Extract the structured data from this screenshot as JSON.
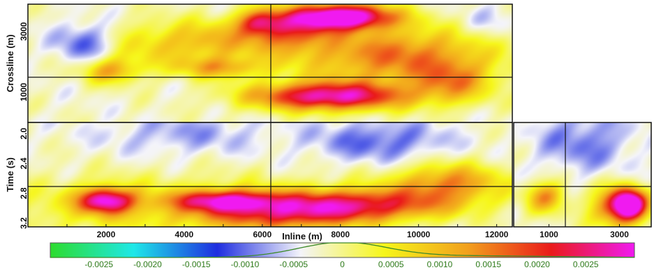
{
  "chart_data": {
    "type": "heatmap",
    "colormap": [
      "#2ddc2d",
      "#1ee8e8",
      "#1e2de0",
      "#f4f4fa",
      "#f6f61a",
      "#f2a01c",
      "#ea1a1a",
      "#f01af0"
    ],
    "color_range": [
      -0.003,
      0.003
    ],
    "panels": [
      {
        "name": "time-slice",
        "xlabel": "",
        "ylabel": "Crossline (m)",
        "xlim": [
          0,
          12400
        ],
        "ylim": [
          0,
          3900
        ],
        "y_ticks": [
          "1000",
          "3000"
        ],
        "y_tick_values": [
          1000,
          3000
        ],
        "crosshair": {
          "x": 6150,
          "y": 1470
        },
        "hotspots": [
          {
            "x": 8100,
            "y": 3500,
            "sx": 900,
            "sy": 300,
            "amp": 0.0036
          },
          {
            "x": 7700,
            "y": 850,
            "sx": 1400,
            "sy": 330,
            "amp": 0.003
          },
          {
            "x": 9400,
            "y": 2200,
            "sx": 1800,
            "sy": 700,
            "amp": 0.0018
          },
          {
            "x": 6800,
            "y": 3100,
            "sx": 700,
            "sy": 500,
            "amp": 0.0016
          },
          {
            "x": 5900,
            "y": 3300,
            "sx": 400,
            "sy": 300,
            "amp": 0.0017
          },
          {
            "x": 4800,
            "y": 2700,
            "sx": 1100,
            "sy": 500,
            "amp": 0.0011
          },
          {
            "x": 2100,
            "y": 1700,
            "sx": 500,
            "sy": 300,
            "amp": 0.0013
          },
          {
            "x": 4900,
            "y": 1800,
            "sx": 800,
            "sy": 250,
            "amp": 0.0012
          },
          {
            "x": 2600,
            "y": 2500,
            "sx": 1200,
            "sy": 600,
            "amp": 0.0007
          },
          {
            "x": 10900,
            "y": 1300,
            "sx": 700,
            "sy": 500,
            "amp": 0.0012
          },
          {
            "x": 1500,
            "y": 2600,
            "sx": 600,
            "sy": 500,
            "amp": -0.0012
          },
          {
            "x": 11800,
            "y": 3300,
            "sx": 600,
            "sy": 400,
            "amp": -0.0004
          }
        ]
      },
      {
        "name": "inline-section",
        "xlabel": "Inline (m)",
        "ylabel": "Time (s)",
        "xlim": [
          0,
          12400
        ],
        "ylim": [
          1.85,
          3.25
        ],
        "x_ticks": [
          "2000",
          "4000",
          "6000",
          "8000",
          "10000",
          "12000"
        ],
        "x_tick_values": [
          2000,
          4000,
          6000,
          8000,
          10000,
          12000
        ],
        "y_ticks": [
          "2.0",
          "2.4",
          "2.8",
          "3.2"
        ],
        "y_tick_values": [
          2.0,
          2.4,
          2.8,
          3.2
        ],
        "crosshair": {
          "x": 6150,
          "y": 2.69
        },
        "hotspots": [
          {
            "x": 2000,
            "y": 2.9,
            "sx": 500,
            "sy": 0.12,
            "amp": 0.0028
          },
          {
            "x": 5000,
            "y": 2.9,
            "sx": 900,
            "sy": 0.1,
            "amp": 0.0022
          },
          {
            "x": 8400,
            "y": 2.95,
            "sx": 1800,
            "sy": 0.15,
            "amp": 0.0022
          },
          {
            "x": 10800,
            "y": 2.65,
            "sx": 1000,
            "sy": 0.18,
            "amp": 0.0016
          },
          {
            "x": 6500,
            "y": 3.1,
            "sx": 1500,
            "sy": 0.15,
            "amp": 0.0014
          },
          {
            "x": 3500,
            "y": 3.0,
            "sx": 3500,
            "sy": 0.3,
            "amp": 0.0008
          },
          {
            "x": 9000,
            "y": 2.1,
            "sx": 1200,
            "sy": 0.2,
            "amp": -0.0008
          },
          {
            "x": 4000,
            "y": 2.0,
            "sx": 1500,
            "sy": 0.2,
            "amp": -0.0005
          }
        ]
      },
      {
        "name": "crossline-section",
        "xlabel": "",
        "ylabel": "",
        "xlim": [
          0,
          3900
        ],
        "ylim": [
          1.85,
          3.25
        ],
        "x_ticks": [
          "1000",
          "3000"
        ],
        "x_tick_values": [
          1000,
          3000
        ],
        "crosshair": {
          "x": 1470,
          "y": 2.69
        },
        "hotspots": [
          {
            "x": 3300,
            "y": 2.95,
            "sx": 350,
            "sy": 0.15,
            "amp": 0.0036
          },
          {
            "x": 2800,
            "y": 3.0,
            "sx": 500,
            "sy": 0.2,
            "amp": 0.0016
          },
          {
            "x": 900,
            "y": 2.85,
            "sx": 400,
            "sy": 0.15,
            "amp": 0.0016
          },
          {
            "x": 2000,
            "y": 2.1,
            "sx": 1000,
            "sy": 0.3,
            "amp": -0.0007
          }
        ]
      }
    ],
    "colorbar": {
      "ticks": [
        "-0.0025",
        "-0.0020",
        "-0.0015",
        "-0.0010",
        "-0.0005",
        "0",
        "0.0005",
        "0.0010",
        "0.0015",
        "0.0020",
        "0.0025"
      ],
      "tick_values": [
        -0.0025,
        -0.002,
        -0.0015,
        -0.001,
        -0.0005,
        0,
        0.0005,
        0.001,
        0.0015,
        0.002,
        0.0025
      ],
      "histogram": {
        "peak": 0.0,
        "spread": 0.00045
      }
    }
  }
}
